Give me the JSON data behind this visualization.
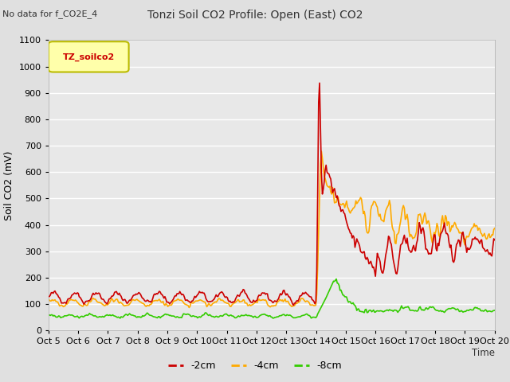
{
  "title": "Tonzi Soil CO2 Profile: Open (East) CO2",
  "subtitle": "No data for f_CO2E_4",
  "ylabel": "Soil CO2 (mV)",
  "xlabel": "Time",
  "ylim": [
    0,
    1100
  ],
  "legend_label": "TZ_soilco2",
  "series_labels": [
    "-2cm",
    "-4cm",
    "-8cm"
  ],
  "series_colors": [
    "#cc0000",
    "#ffaa00",
    "#33cc00"
  ],
  "n_points": 480,
  "x_tick_labels": [
    "Oct 5",
    "Oct 6",
    "Oct 7",
    "Oct 8",
    "Oct 9",
    "Oct 10",
    "Oct 11",
    "Oct 12",
    "Oct 13",
    "Oct 14",
    "Oct 15",
    "Oct 16",
    "Oct 17",
    "Oct 18",
    "Oct 19",
    "Oct 20"
  ],
  "bg_color": "#e0e0e0",
  "plot_bg_color": "#e8e8e8",
  "grid_color": "#ffffff",
  "line_width": 1.2
}
